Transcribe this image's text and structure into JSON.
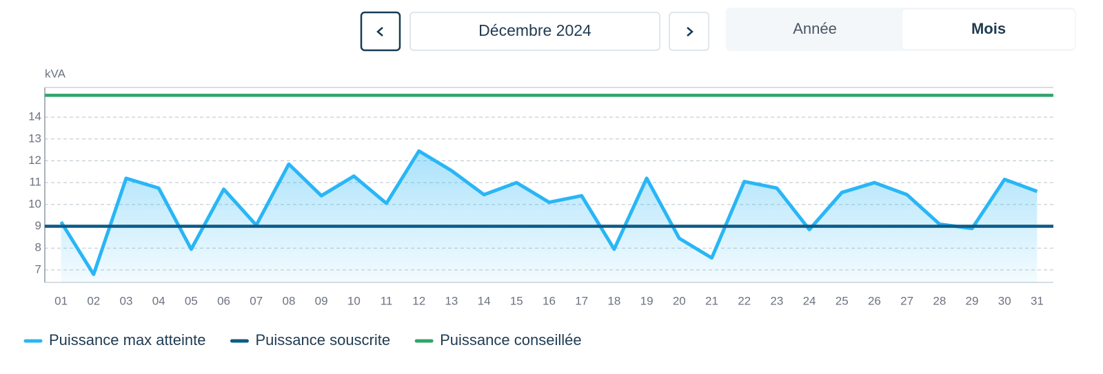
{
  "controls": {
    "period": "Décembre 2024",
    "toggle": [
      "Année",
      "Mois"
    ],
    "selected": 1
  },
  "chart_data": {
    "type": "line",
    "y_unit": "kVA",
    "categories": [
      "01",
      "02",
      "03",
      "04",
      "05",
      "06",
      "07",
      "08",
      "09",
      "10",
      "11",
      "12",
      "13",
      "14",
      "15",
      "16",
      "17",
      "18",
      "19",
      "20",
      "21",
      "22",
      "23",
      "24",
      "25",
      "26",
      "27",
      "28",
      "29",
      "30",
      "31"
    ],
    "series": [
      {
        "name": "Puissance max atteinte",
        "color": "#29b6f6",
        "area": true,
        "values": [
          9.2,
          6.8,
          11.2,
          10.75,
          7.95,
          10.7,
          9.05,
          11.85,
          10.4,
          11.3,
          10.05,
          12.45,
          11.55,
          10.45,
          11.0,
          10.1,
          10.4,
          7.95,
          11.2,
          8.45,
          7.55,
          11.05,
          10.75,
          8.85,
          10.55,
          11.0,
          10.45,
          9.1,
          8.9,
          11.15,
          10.6
        ]
      },
      {
        "name": "Puissance souscrite",
        "color": "#0d5a86",
        "value": 9
      },
      {
        "name": "Puissance conseillée",
        "color": "#2fa56b",
        "value": 15
      }
    ],
    "ylim": [
      6.43,
      15.36
    ],
    "yticks": [
      7,
      8,
      9,
      10,
      11,
      12,
      13,
      14
    ],
    "grid": true
  }
}
